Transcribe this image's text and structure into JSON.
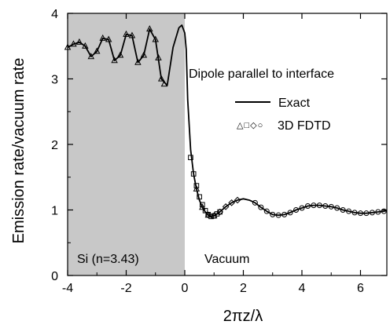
{
  "chart_data": {
    "type": "line",
    "title": "",
    "xlabel": "2πz/λ",
    "ylabel": "Emission rate/vacuum rate",
    "xlim": [
      -4,
      6.9
    ],
    "ylim": [
      0,
      4
    ],
    "x_ticks": [
      "-4",
      "-2",
      "0",
      "2",
      "4",
      "6"
    ],
    "y_ticks": [
      "0",
      "1",
      "2",
      "3",
      "4"
    ],
    "grid": false,
    "legend_position": "right, upper-middle",
    "shaded_region": {
      "x_from": -4,
      "x_to": 0,
      "color": "#c8c8c8"
    },
    "annotations": {
      "dipole": "Dipole parallel to interface",
      "silicon": "Si (n=3.43)",
      "vacuum": "Vacuum"
    },
    "legend": {
      "exact": "Exact",
      "fdtd": "3D FDTD",
      "fdtd_symbols": "△□◇○"
    },
    "series": [
      {
        "name": "Exact",
        "style": "solid-line",
        "x": [
          -4.0,
          -3.8,
          -3.6,
          -3.4,
          -3.2,
          -3.0,
          -2.8,
          -2.6,
          -2.4,
          -2.2,
          -2.0,
          -1.8,
          -1.6,
          -1.4,
          -1.2,
          -1.0,
          -0.8,
          -0.6,
          -0.4,
          -0.2,
          -0.1,
          0.0,
          0.05,
          0.1,
          0.2,
          0.3,
          0.4,
          0.5,
          0.6,
          0.7,
          0.8,
          0.9,
          1.0,
          1.2,
          1.4,
          1.6,
          1.8,
          2.0,
          2.2,
          2.4,
          2.6,
          2.8,
          3.0,
          3.2,
          3.4,
          3.6,
          3.8,
          4.0,
          4.2,
          4.4,
          4.6,
          4.8,
          5.0,
          5.2,
          5.4,
          5.6,
          5.8,
          6.0,
          6.2,
          6.4,
          6.6,
          6.8,
          6.9
        ],
        "y": [
          3.48,
          3.53,
          3.56,
          3.5,
          3.34,
          3.42,
          3.62,
          3.6,
          3.28,
          3.36,
          3.68,
          3.66,
          3.25,
          3.36,
          3.76,
          3.6,
          3.0,
          2.9,
          3.48,
          3.78,
          3.82,
          3.7,
          3.45,
          2.68,
          1.92,
          1.55,
          1.32,
          1.15,
          1.04,
          0.97,
          0.92,
          0.9,
          0.91,
          0.97,
          1.05,
          1.11,
          1.15,
          1.17,
          1.15,
          1.11,
          1.04,
          0.98,
          0.93,
          0.92,
          0.93,
          0.96,
          1.0,
          1.03,
          1.06,
          1.07,
          1.07,
          1.06,
          1.05,
          1.03,
          1.0,
          0.98,
          0.96,
          0.95,
          0.95,
          0.96,
          0.97,
          0.98,
          0.99
        ]
      },
      {
        "name": "3D FDTD",
        "style": "markers",
        "groups": [
          {
            "symbol": "triangle",
            "x": [
              -4.0,
              -3.8,
              -3.6,
              -3.4,
              -3.2,
              -3.0,
              -2.8,
              -2.6,
              -2.4,
              -2.2,
              -2.0,
              -1.8,
              -1.6,
              -1.4,
              -1.2,
              -1.0,
              -0.9,
              -0.8,
              -0.7,
              0.4,
              0.6,
              0.8,
              1.0
            ],
            "y": [
              3.48,
              3.53,
              3.56,
              3.5,
              3.34,
              3.42,
              3.62,
              3.6,
              3.28,
              3.36,
              3.68,
              3.66,
              3.25,
              3.36,
              3.76,
              3.6,
              3.32,
              3.0,
              2.92,
              1.32,
              1.04,
              0.92,
              0.91
            ]
          },
          {
            "symbol": "square",
            "x": [
              0.2,
              0.3,
              0.4,
              0.5,
              0.6,
              0.7,
              0.8,
              0.9,
              1.0,
              1.1,
              1.2
            ],
            "y": [
              1.8,
              1.55,
              1.37,
              1.2,
              1.08,
              0.99,
              0.93,
              0.9,
              0.91,
              0.94,
              0.97
            ]
          },
          {
            "symbol": "diamond",
            "x": [
              1.2,
              1.4,
              1.6,
              1.8
            ],
            "y": [
              0.97,
              1.05,
              1.11,
              1.15
            ]
          },
          {
            "symbol": "circle",
            "x": [
              0.8,
              1.0,
              2.4,
              2.6,
              2.8,
              3.0,
              3.2,
              3.4,
              3.6,
              3.8,
              4.0,
              4.2,
              4.4,
              4.6,
              4.8,
              5.0,
              5.2,
              5.4,
              5.6,
              5.8,
              6.0,
              6.2,
              6.4,
              6.6,
              6.8
            ],
            "y": [
              0.92,
              0.91,
              1.11,
              1.04,
              0.98,
              0.93,
              0.92,
              0.93,
              0.96,
              1.0,
              1.03,
              1.06,
              1.07,
              1.07,
              1.06,
              1.05,
              1.03,
              1.0,
              0.98,
              0.96,
              0.95,
              0.95,
              0.96,
              0.97,
              0.98
            ]
          }
        ]
      }
    ]
  }
}
